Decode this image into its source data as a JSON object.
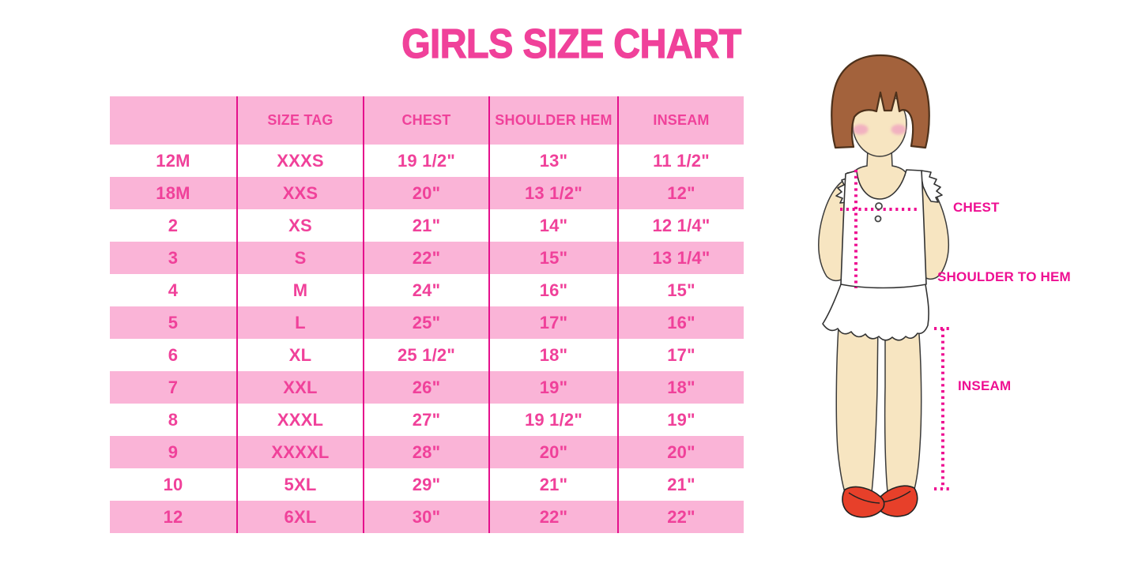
{
  "title": "GIRLS SIZE CHART",
  "chart_data": {
    "type": "table",
    "title": "GIRLS SIZE CHART",
    "columns": [
      "",
      "SIZE TAG",
      "CHEST",
      "SHOULDER HEM",
      "INSEAM"
    ],
    "rows": [
      [
        "12M",
        "XXXS",
        "19 1/2\"",
        "13\"",
        "11 1/2\""
      ],
      [
        "18M",
        "XXS",
        "20\"",
        "13 1/2\"",
        "12\""
      ],
      [
        "2",
        "XS",
        "21\"",
        "14\"",
        "12 1/4\""
      ],
      [
        "3",
        "S",
        "22\"",
        "15\"",
        "13 1/4\""
      ],
      [
        "4",
        "M",
        "24\"",
        "16\"",
        "15\""
      ],
      [
        "5",
        "L",
        "25\"",
        "17\"",
        "16\""
      ],
      [
        "6",
        "XL",
        "25 1/2\"",
        "18\"",
        "17\""
      ],
      [
        "7",
        "XXL",
        "26\"",
        "19\"",
        "18\""
      ],
      [
        "8",
        "XXXL",
        "27\"",
        "19 1/2\"",
        "19\""
      ],
      [
        "9",
        "XXXXL",
        "28\"",
        "20\"",
        "20\""
      ],
      [
        "10",
        "5XL",
        "29\"",
        "21\"",
        "21\""
      ],
      [
        "12",
        "6XL",
        "30\"",
        "22\"",
        "22\""
      ]
    ],
    "layout_hints": {
      "striping": "alternating white and pink rows, pink header",
      "separators": "vertical magenta lines between columns only"
    }
  },
  "figure": {
    "labels": {
      "chest": "CHEST",
      "shoulder_to_hem": "SHOULDER TO HEM",
      "inseam": "INSEAM"
    }
  },
  "colors": {
    "title_pink": "#F0419A",
    "table_text_pink": "#F0419A",
    "row_pink": "#FAB4D7",
    "column_line_magenta": "#E5108C",
    "measure_label_magenta": "#EE0F92",
    "hair_brown": "#A3623C",
    "skin": "#F7E5C1",
    "shoe_red": "#E7402A",
    "background": "#FFFFFF"
  }
}
